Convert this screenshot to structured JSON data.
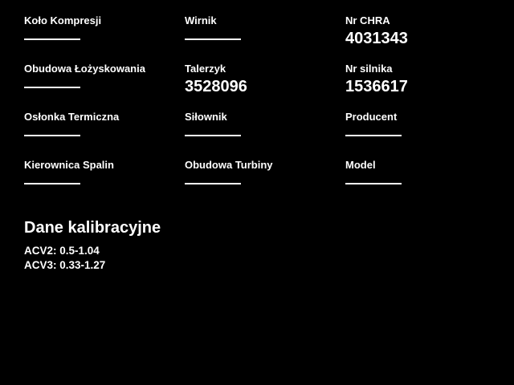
{
  "theme": {
    "background_color": "#000000",
    "text_color": "#ffffff",
    "underline_color": "#ffffff"
  },
  "fields": [
    {
      "label": "Koło Kompresji",
      "value": ""
    },
    {
      "label": "Wirnik",
      "value": ""
    },
    {
      "label": "Nr CHRA",
      "value": "4031343"
    },
    {
      "label": "Obudowa Łożyskowania",
      "value": ""
    },
    {
      "label": "Talerzyk",
      "value": "3528096"
    },
    {
      "label": "Nr silnika",
      "value": "1536617"
    },
    {
      "label": "Osłonka Termiczna",
      "value": ""
    },
    {
      "label": "Siłownik",
      "value": ""
    },
    {
      "label": "Producent",
      "value": ""
    },
    {
      "label": "Kierownica Spalin",
      "value": ""
    },
    {
      "label": "Obudowa Turbiny",
      "value": ""
    },
    {
      "label": "Model",
      "value": ""
    }
  ],
  "calibration": {
    "title": "Dane kalibracyjne",
    "lines": [
      "ACV2: 0.5-1.04",
      "ACV3: 0.33-1.27"
    ]
  }
}
